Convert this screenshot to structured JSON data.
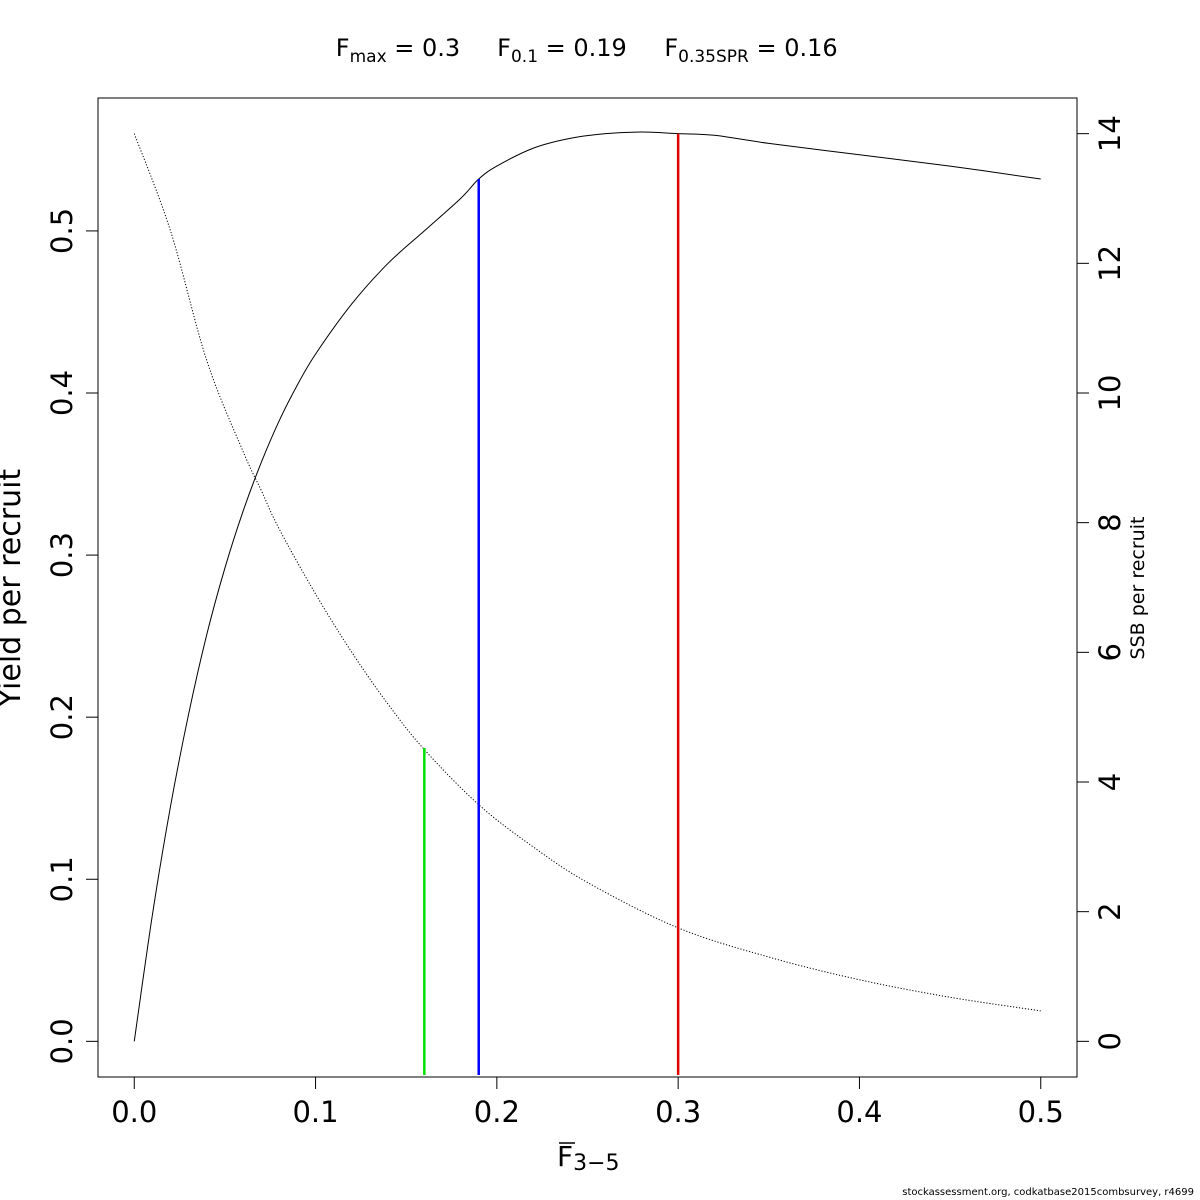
{
  "chart_data": {
    "type": "line",
    "title": {
      "fmax": {
        "main": "F",
        "sub": "max",
        "rest": " = 0.3"
      },
      "f01": {
        "main": "F",
        "sub": "0.1",
        "rest": " = 0.19"
      },
      "f35": {
        "main": "F",
        "sub": "0.35SPR",
        "rest": " = 0.16"
      }
    },
    "xlabel": {
      "main": "F",
      "sub": "3−5"
    },
    "ylabel_left": "Yield per recruit",
    "ylabel_right": "SSB per recruit",
    "xlim": [
      -0.02,
      0.52
    ],
    "ylim_left": [
      -0.022,
      0.582
    ],
    "ylim_right": [
      -0.55,
      14.55
    ],
    "x_ticks": [
      "0.0",
      "0.1",
      "0.2",
      "0.3",
      "0.4",
      "0.5"
    ],
    "y_left_ticks": [
      "0.0",
      "0.1",
      "0.2",
      "0.3",
      "0.4",
      "0.5"
    ],
    "y_right_ticks": [
      "0",
      "2",
      "4",
      "6",
      "8",
      "10",
      "12",
      "14"
    ],
    "grid": false,
    "series": [
      {
        "axis": "left",
        "style": "solid",
        "color": "#000000",
        "x": [
          0,
          0.01,
          0.02,
          0.03,
          0.04,
          0.05,
          0.06,
          0.07,
          0.08,
          0.09,
          0.1,
          0.12,
          0.14,
          0.16,
          0.18,
          0.19,
          0.2,
          0.22,
          0.24,
          0.26,
          0.28,
          0.3,
          0.32,
          0.35,
          0.4,
          0.45,
          0.5
        ],
        "values": [
          0,
          0.078,
          0.145,
          0.202,
          0.251,
          0.292,
          0.327,
          0.357,
          0.383,
          0.405,
          0.424,
          0.455,
          0.48,
          0.5,
          0.52,
          0.532,
          0.54,
          0.551,
          0.557,
          0.56,
          0.561,
          0.56,
          0.559,
          0.554,
          0.547,
          0.54,
          0.532
        ]
      },
      {
        "axis": "right",
        "style": "dotted",
        "color": "#000000",
        "x": [
          0,
          0.02,
          0.04,
          0.06,
          0.07,
          0.08,
          0.1,
          0.12,
          0.14,
          0.16,
          0.19,
          0.22,
          0.25,
          0.3,
          0.35,
          0.4,
          0.45,
          0.5
        ],
        "values": [
          14.0,
          12.5,
          10.5,
          9.1,
          8.5,
          7.9,
          6.9,
          6.0,
          5.2,
          4.5,
          3.65,
          3.0,
          2.45,
          1.75,
          1.3,
          0.95,
          0.68,
          0.47
        ]
      }
    ],
    "reference_lines": [
      {
        "label": "F0.35SPR",
        "x": 0.16,
        "y_top": 0.181,
        "color": "#00e000"
      },
      {
        "label": "F0.1",
        "x": 0.19,
        "y_top": 0.532,
        "color": "#0000ff"
      },
      {
        "label": "Fmax",
        "x": 0.3,
        "y_top": 0.56,
        "color": "#e00000"
      }
    ]
  },
  "footer": "stockassessment.org, codkatbase2015combsurvey, r4699"
}
